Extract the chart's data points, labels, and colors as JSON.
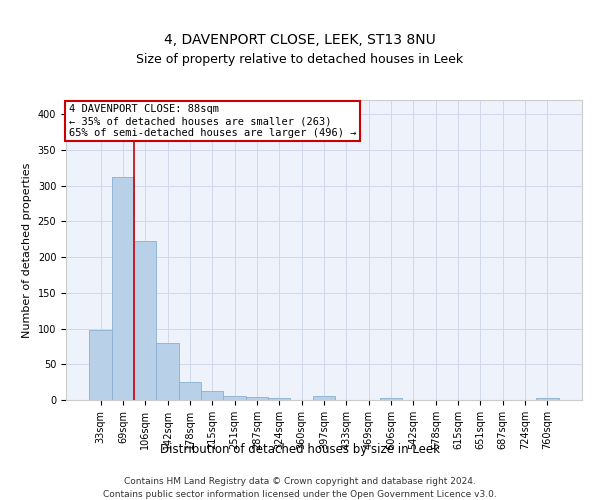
{
  "title1": "4, DAVENPORT CLOSE, LEEK, ST13 8NU",
  "title2": "Size of property relative to detached houses in Leek",
  "xlabel": "Distribution of detached houses by size in Leek",
  "ylabel": "Number of detached properties",
  "categories": [
    "33sqm",
    "69sqm",
    "106sqm",
    "142sqm",
    "178sqm",
    "215sqm",
    "251sqm",
    "287sqm",
    "324sqm",
    "360sqm",
    "397sqm",
    "433sqm",
    "469sqm",
    "506sqm",
    "542sqm",
    "578sqm",
    "615sqm",
    "651sqm",
    "687sqm",
    "724sqm",
    "760sqm"
  ],
  "values": [
    98,
    312,
    222,
    80,
    25,
    12,
    5,
    4,
    3,
    0,
    5,
    0,
    0,
    3,
    0,
    0,
    0,
    0,
    0,
    0,
    3
  ],
  "bar_color": "#b8d0e8",
  "bar_edge_color": "#8ab0d0",
  "grid_color": "#d0d8ee",
  "background_color": "#eef2fa",
  "vline_color": "#cc0000",
  "vline_x": 1.5,
  "annotation_line1": "4 DAVENPORT CLOSE: 88sqm",
  "annotation_line2": "← 35% of detached houses are smaller (263)",
  "annotation_line3": "65% of semi-detached houses are larger (496) →",
  "annotation_box_edgecolor": "#cc0000",
  "footer_line1": "Contains HM Land Registry data © Crown copyright and database right 2024.",
  "footer_line2": "Contains public sector information licensed under the Open Government Licence v3.0.",
  "ylim": [
    0,
    420
  ],
  "yticks": [
    0,
    50,
    100,
    150,
    200,
    250,
    300,
    350,
    400
  ],
  "title1_fontsize": 10,
  "title2_fontsize": 9,
  "xlabel_fontsize": 8.5,
  "ylabel_fontsize": 8,
  "tick_fontsize": 7,
  "annot_fontsize": 7.5,
  "footer_fontsize": 6.5
}
